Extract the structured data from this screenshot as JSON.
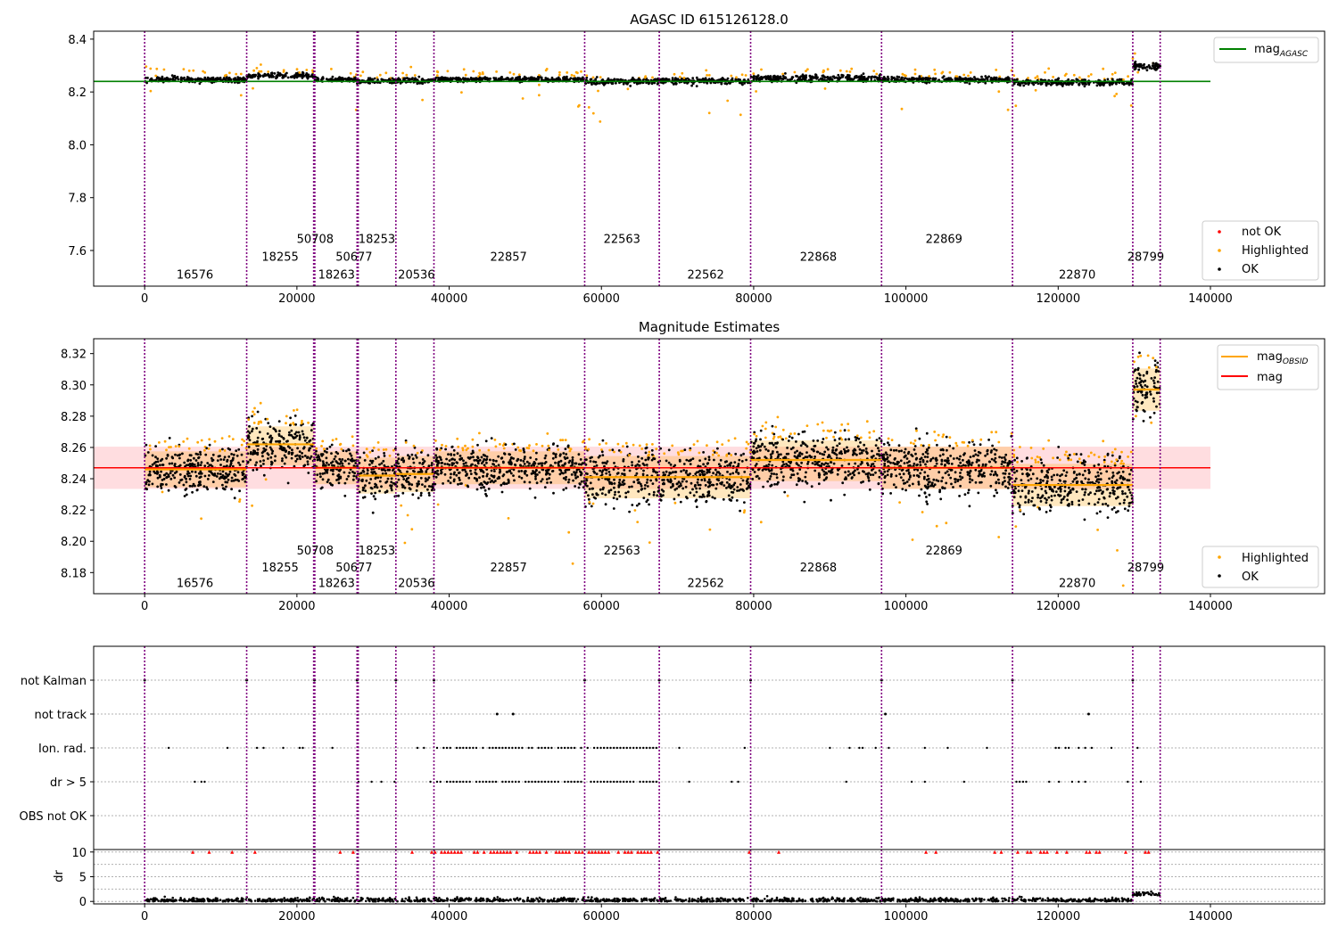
{
  "chart_data": [
    {
      "type": "scatter",
      "title": "AGASC ID 615126128.0",
      "xlim": [
        -6700,
        155000
      ],
      "ylim": [
        7.465,
        8.43
      ],
      "xticks": [
        0,
        20000,
        40000,
        60000,
        80000,
        100000,
        120000,
        140000
      ],
      "xtick_labels": [
        "0",
        "20000",
        "40000",
        "60000",
        "80000",
        "100000",
        "120000",
        "140000"
      ],
      "yticks": [
        7.6,
        7.8,
        8.0,
        8.2,
        8.4
      ],
      "ytick_labels": [
        "7.6",
        "7.8",
        "8.0",
        "8.2",
        "8.4"
      ],
      "hline": {
        "label": "mag_AGASC",
        "legend_label": "mag",
        "legend_sub": "AGASC",
        "y": 8.24,
        "x": [
          -6700,
          140000
        ],
        "color": "#008000"
      },
      "scatter_legend": [
        {
          "label": "not OK",
          "color": "#ff0000"
        },
        {
          "label": "Highlighted",
          "color": "#ffa500"
        },
        {
          "label": "OK",
          "color": "#000000"
        }
      ],
      "legend_placement": {
        "line": "top-right",
        "scatter": "bottom-right"
      },
      "obsid_labels": [
        {
          "text": "16576",
          "x": 6600,
          "y": 7.51
        },
        {
          "text": "18255",
          "x": 17800,
          "y": 7.578
        },
        {
          "text": "50708",
          "x": 22400,
          "y": 7.645
        },
        {
          "text": "18263",
          "x": 25200,
          "y": 7.51
        },
        {
          "text": "50677",
          "x": 27500,
          "y": 7.578
        },
        {
          "text": "18253",
          "x": 30500,
          "y": 7.645
        },
        {
          "text": "20536",
          "x": 35700,
          "y": 7.51
        },
        {
          "text": "22857",
          "x": 47800,
          "y": 7.578
        },
        {
          "text": "22563",
          "x": 62700,
          "y": 7.645
        },
        {
          "text": "22562",
          "x": 73700,
          "y": 7.51
        },
        {
          "text": "22868",
          "x": 88500,
          "y": 7.578
        },
        {
          "text": "22869",
          "x": 105000,
          "y": 7.645
        },
        {
          "text": "22870",
          "x": 122500,
          "y": 7.51
        },
        {
          "text": "28799",
          "x": 131500,
          "y": 7.578
        }
      ],
      "segments": [
        {
          "x0": 0,
          "x1": 13400,
          "center": 8.247,
          "spread": 0.015
        },
        {
          "x0": 13400,
          "x1": 22300,
          "center": 8.262,
          "spread": 0.014
        },
        {
          "x0": 22300,
          "x1": 27900,
          "center": 8.246,
          "spread": 0.013
        },
        {
          "x0": 27900,
          "x1": 33000,
          "center": 8.242,
          "spread": 0.014
        },
        {
          "x0": 33000,
          "x1": 38000,
          "center": 8.243,
          "spread": 0.014
        },
        {
          "x0": 38000,
          "x1": 57800,
          "center": 8.248,
          "spread": 0.013
        },
        {
          "x0": 57800,
          "x1": 67600,
          "center": 8.241,
          "spread": 0.017
        },
        {
          "x0": 67600,
          "x1": 79600,
          "center": 8.241,
          "spread": 0.017
        },
        {
          "x0": 79600,
          "x1": 96800,
          "center": 8.252,
          "spread": 0.018
        },
        {
          "x0": 96800,
          "x1": 114000,
          "center": 8.247,
          "spread": 0.016
        },
        {
          "x0": 114000,
          "x1": 129800,
          "center": 8.236,
          "spread": 0.016
        },
        {
          "x0": 129800,
          "x1": 133400,
          "center": 8.297,
          "spread": 0.018
        }
      ]
    },
    {
      "type": "scatter",
      "title": "Magnitude Estimates",
      "xlim": [
        -6700,
        155000
      ],
      "ylim": [
        8.1665,
        8.3295
      ],
      "xticks": [
        0,
        20000,
        40000,
        60000,
        80000,
        100000,
        120000,
        140000
      ],
      "xtick_labels": [
        "0",
        "20000",
        "40000",
        "60000",
        "80000",
        "100000",
        "120000",
        "140000"
      ],
      "yticks": [
        8.18,
        8.2,
        8.22,
        8.24,
        8.26,
        8.28,
        8.3,
        8.32
      ],
      "ytick_labels": [
        "8.18",
        "8.20",
        "8.22",
        "8.24",
        "8.26",
        "8.28",
        "8.30",
        "8.32"
      ],
      "mag": {
        "label": "mag",
        "value": 8.247,
        "band": [
          8.2335,
          8.2605
        ],
        "x": [
          -6700,
          140000
        ],
        "color": "#ff0000",
        "band_color": "#ffdde0"
      },
      "obsid_mags": {
        "legend_label": "mag",
        "legend_sub": "OBSID",
        "color": "#ffa500"
      },
      "scatter_legend": [
        {
          "label": "Highlighted",
          "color": "#ffa500"
        },
        {
          "label": "OK",
          "color": "#000000"
        }
      ],
      "legend_placement": {
        "line": "top-right",
        "scatter": "bottom-right"
      },
      "obsid_labels": [
        {
          "text": "16576",
          "x": 6600,
          "y": 8.1735
        },
        {
          "text": "18255",
          "x": 17800,
          "y": 8.1835
        },
        {
          "text": "50708",
          "x": 22400,
          "y": 8.1945
        },
        {
          "text": "18263",
          "x": 25200,
          "y": 8.1735
        },
        {
          "text": "50677",
          "x": 27500,
          "y": 8.1835
        },
        {
          "text": "18253",
          "x": 30500,
          "y": 8.1945
        },
        {
          "text": "20536",
          "x": 35700,
          "y": 8.1735
        },
        {
          "text": "22857",
          "x": 47800,
          "y": 8.1835
        },
        {
          "text": "22563",
          "x": 62700,
          "y": 8.1945
        },
        {
          "text": "22562",
          "x": 73700,
          "y": 8.1735
        },
        {
          "text": "22868",
          "x": 88500,
          "y": 8.1835
        },
        {
          "text": "22869",
          "x": 105000,
          "y": 8.1945
        },
        {
          "text": "22870",
          "x": 122500,
          "y": 8.1735
        },
        {
          "text": "28799",
          "x": 131500,
          "y": 8.1835
        }
      ],
      "segments": [
        {
          "x0": 0,
          "x1": 13400,
          "mag": 8.246,
          "band": [
            8.2345,
            8.2575
          ]
        },
        {
          "x0": 13400,
          "x1": 22300,
          "mag": 8.262,
          "band": [
            8.2485,
            8.2735
          ]
        },
        {
          "x0": 22300,
          "x1": 27900,
          "mag": 8.247,
          "band": [
            8.2365,
            8.2575
          ]
        },
        {
          "x0": 27900,
          "x1": 33000,
          "mag": 8.242,
          "band": [
            8.2305,
            8.2535
          ]
        },
        {
          "x0": 33000,
          "x1": 38000,
          "mag": 8.243,
          "band": [
            8.2315,
            8.2545
          ]
        },
        {
          "x0": 38000,
          "x1": 57800,
          "mag": 8.247,
          "band": [
            8.2365,
            8.2575
          ]
        },
        {
          "x0": 57800,
          "x1": 67600,
          "mag": 8.241,
          "band": [
            8.2275,
            8.2545
          ]
        },
        {
          "x0": 67600,
          "x1": 79600,
          "mag": 8.241,
          "band": [
            8.2275,
            8.2545
          ]
        },
        {
          "x0": 79600,
          "x1": 96800,
          "mag": 8.252,
          "band": [
            8.2385,
            8.2645
          ]
        },
        {
          "x0": 96800,
          "x1": 114000,
          "mag": 8.247,
          "band": [
            8.2335,
            8.2605
          ]
        },
        {
          "x0": 114000,
          "x1": 129800,
          "mag": 8.236,
          "band": [
            8.2225,
            8.2495
          ]
        },
        {
          "x0": 129800,
          "x1": 133400,
          "mag": 8.297,
          "band": [
            8.2835,
            8.3105
          ]
        }
      ]
    },
    {
      "type": "scatter",
      "xlim": [
        -6700,
        155000
      ],
      "flags": [
        {
          "label": "not Kalman",
          "level": 5
        },
        {
          "label": "not track",
          "level": 4
        },
        {
          "label": "Ion. rad.",
          "level": 3
        },
        {
          "label": "dr > 5",
          "level": 2
        },
        {
          "label": "OBS not OK",
          "level": 1
        }
      ],
      "flag_points": {
        "not Kalman": [
          0,
          13400,
          22300,
          27900,
          33000,
          38000,
          57800,
          67600,
          79600,
          96800,
          114000,
          129800
        ],
        "not track": [
          46300,
          48400,
          97300,
          124000
        ]
      }
    },
    {
      "type": "scatter",
      "xlim": [
        -6700,
        155000
      ],
      "ylim": [
        -0.5,
        10.5
      ],
      "ylabel": "dr",
      "yticks": [
        0,
        5,
        10
      ],
      "ytick_labels": [
        "0",
        "5",
        "10"
      ],
      "xticks": [
        0,
        20000,
        40000,
        60000,
        80000,
        100000,
        120000,
        140000
      ],
      "xtick_labels": [
        "0",
        "20000",
        "40000",
        "60000",
        "80000",
        "100000",
        "120000",
        "140000"
      ]
    }
  ],
  "obsid_boundaries": [
    0,
    13400,
    22200,
    22350,
    27900,
    28050,
    33000,
    38000,
    57800,
    67600,
    79600,
    96800,
    114000,
    129800,
    133400
  ]
}
